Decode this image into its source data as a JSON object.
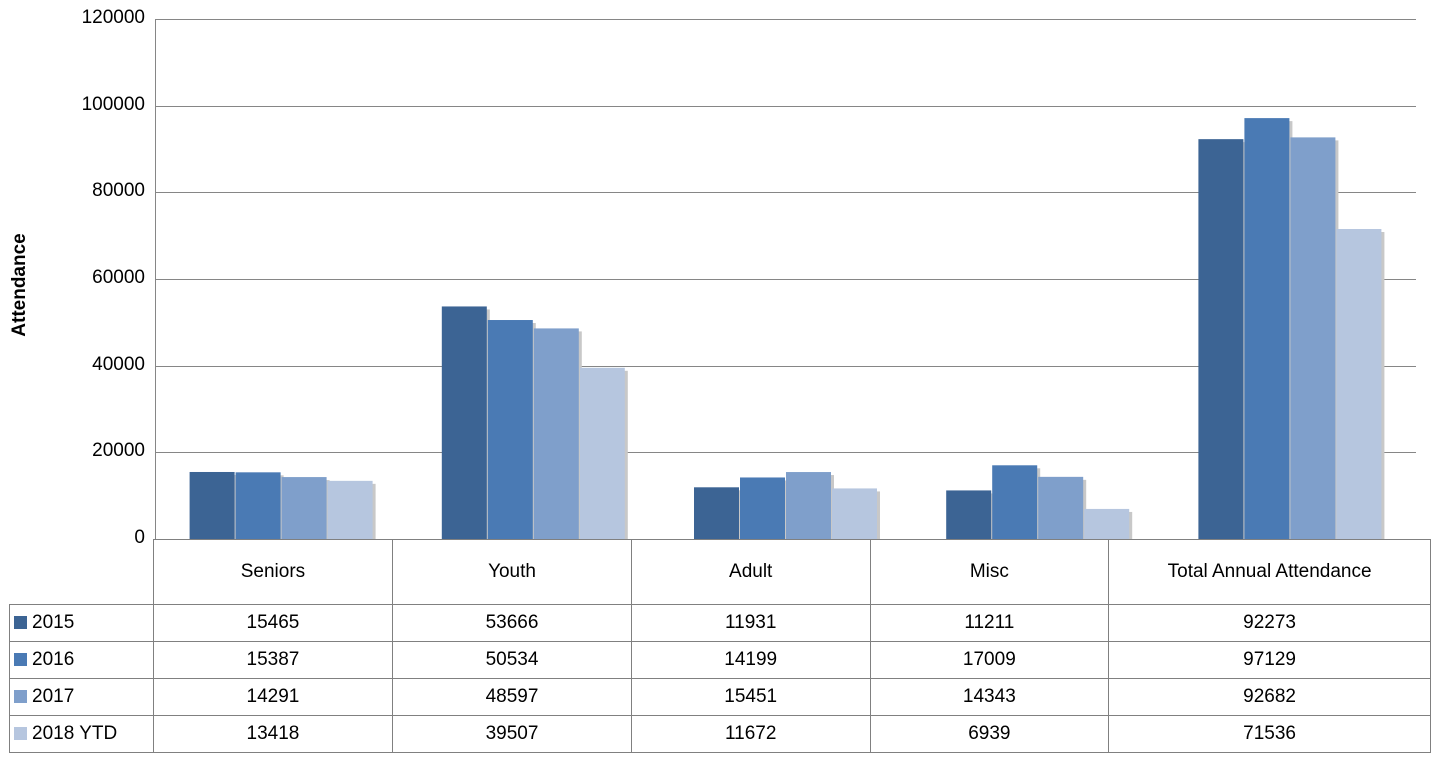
{
  "chart_data": {
    "type": "bar",
    "title": "",
    "xlabel": "",
    "ylabel": "Attendance",
    "ylim": [
      0,
      120000
    ],
    "yticks": [
      0,
      20000,
      40000,
      60000,
      80000,
      100000,
      120000
    ],
    "grid": true,
    "legend": "data table",
    "categories": [
      "Seniors",
      "Youth",
      "Adult",
      "Misc",
      "Total Annual Attendance"
    ],
    "series": [
      {
        "name": "2015",
        "color": "#3c6494",
        "values": [
          15465,
          53666,
          11931,
          11211,
          92273
        ]
      },
      {
        "name": "2016",
        "color": "#4a7ab4",
        "values": [
          15387,
          50534,
          14199,
          17009,
          97129
        ]
      },
      {
        "name": "2017",
        "color": "#7f9fcb",
        "values": [
          14291,
          48597,
          15451,
          14343,
          92682
        ]
      },
      {
        "name": "2018 YTD",
        "color": "#b6c6df",
        "values": [
          13418,
          39507,
          11672,
          6939,
          71536
        ]
      }
    ]
  }
}
